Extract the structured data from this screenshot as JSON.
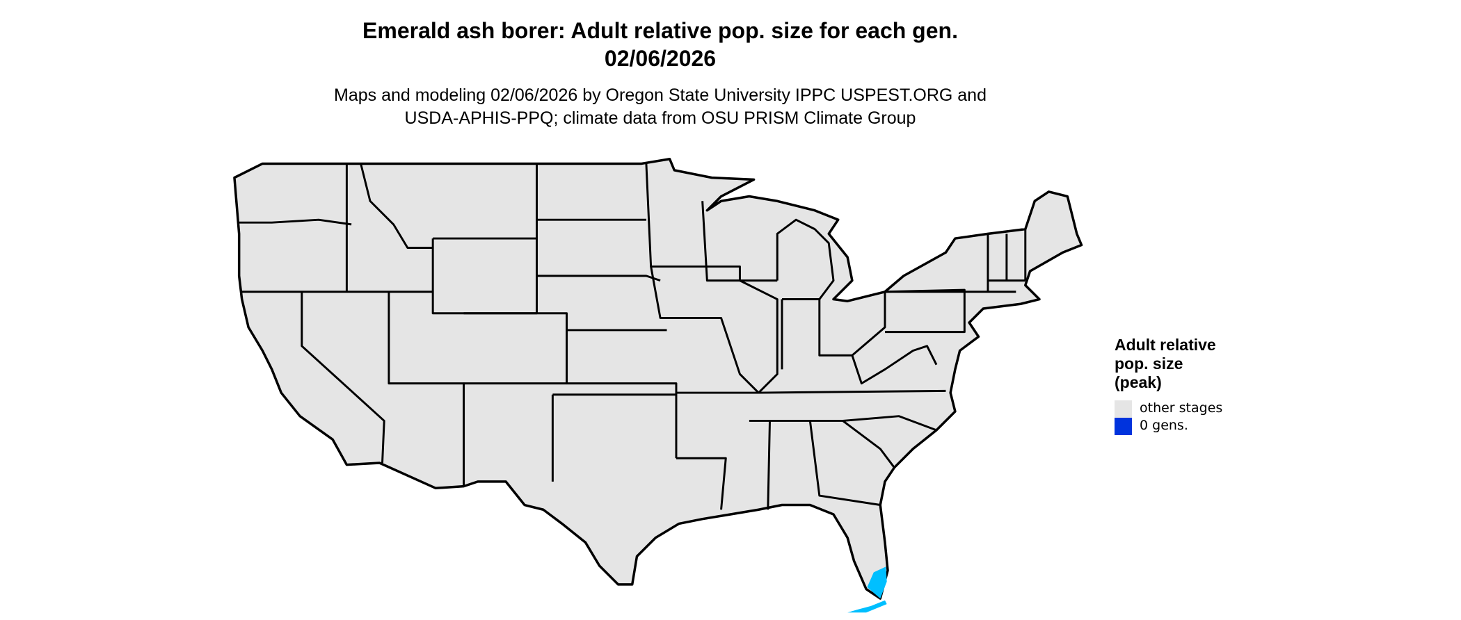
{
  "title": {
    "line1": "Emerald ash borer: Adult relative pop. size for each gen.",
    "line2": "02/06/2026"
  },
  "subtitle": {
    "line1": "Maps and modeling 02/06/2026 by Oregon State University IPPC USPEST.ORG and",
    "line2": "USDA-APHIS-PPQ; climate data from OSU PRISM Climate Group"
  },
  "legend": {
    "title_lines": [
      "Adult relative",
      "pop. size",
      "(peak)"
    ],
    "items": [
      {
        "label": "other stages",
        "color": "#E5E5E5"
      },
      {
        "label": "0 gens.",
        "color": "#0033DD"
      }
    ]
  },
  "map": {
    "region": "Contiguous United States",
    "land_color": "#E5E5E5",
    "border_color": "#000000",
    "highlight_color": "#00BFFF"
  }
}
